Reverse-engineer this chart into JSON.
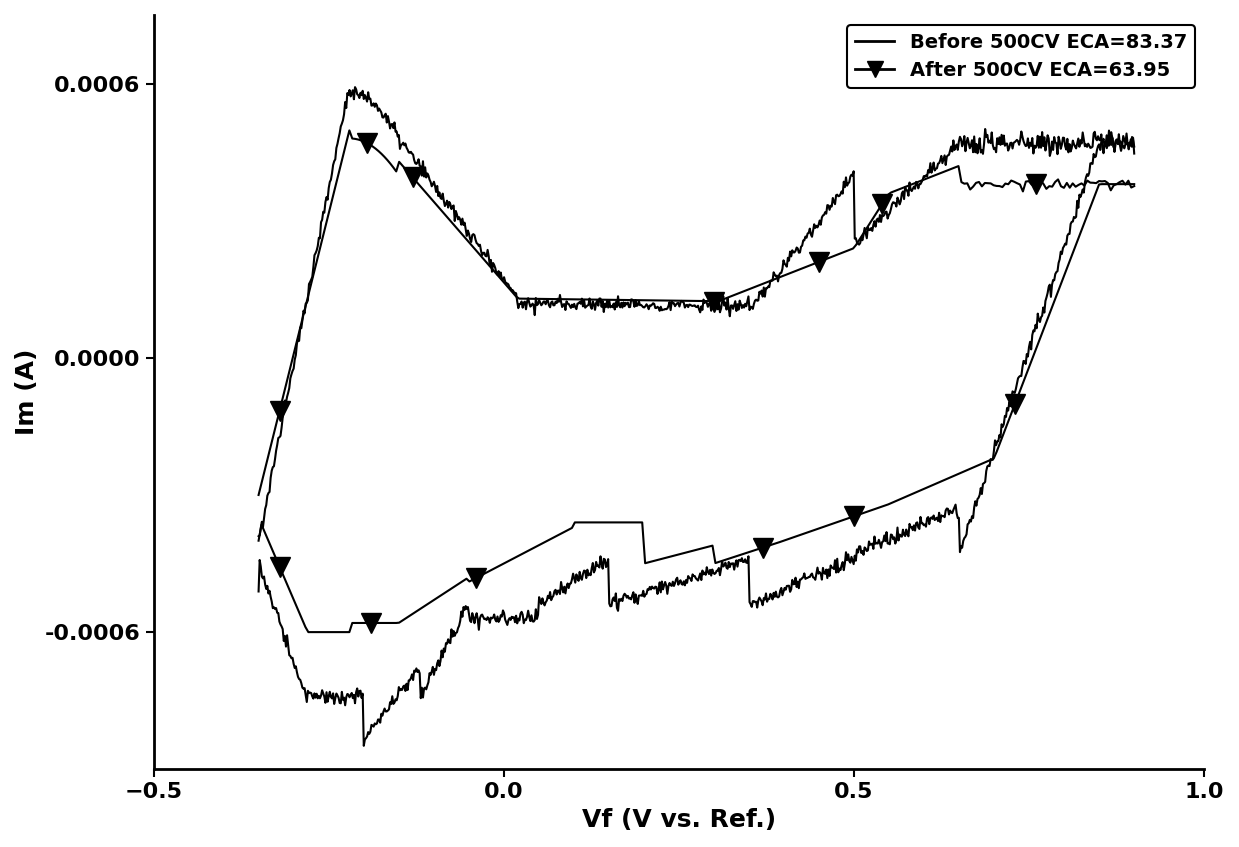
{
  "xlabel": "Vf (V vs. Ref.)",
  "ylabel": "Im (A)",
  "xlim": [
    -0.5,
    1.0
  ],
  "ylim": [
    -0.0009,
    0.00075
  ],
  "yticks": [
    -0.0006,
    0.0,
    0.0006
  ],
  "xticks": [
    -0.5,
    0.0,
    0.5,
    1.0
  ],
  "legend1_label": "Before 500CV ECA=83.37",
  "legend2_label": "After 500CV ECA=63.95",
  "line_color": "#000000",
  "background_color": "#ffffff",
  "marker_color": "#000000",
  "marker_size": 14,
  "linewidth": 1.5,
  "xlabel_fontsize": 18,
  "ylabel_fontsize": 18,
  "tick_fontsize": 16,
  "legend_fontsize": 14
}
